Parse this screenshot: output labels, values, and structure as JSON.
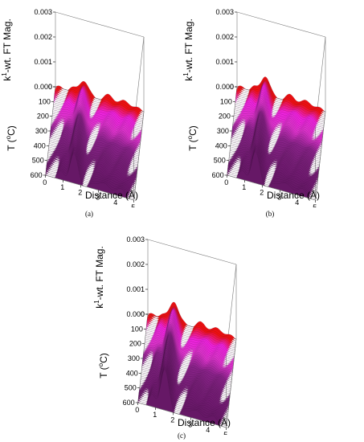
{
  "chart_data": [
    {
      "type": "surface3d-waterfall",
      "caption": "(a)",
      "zlabel_main": "-wt. FT Mag.",
      "zlabel_k": "k",
      "zlabel_sup": "1",
      "ylabel_main": "T (",
      "ylabel_sup": "o",
      "ylabel_end": "C)",
      "xlabel": "Distance (Å)",
      "x_ticks": [
        "0",
        "1",
        "2",
        "3",
        "4",
        "5"
      ],
      "y_ticks": [
        "0",
        "100",
        "200",
        "300",
        "400",
        "500",
        "600"
      ],
      "z_ticks": [
        "0.000",
        "0.001",
        "0.002",
        "0.003"
      ],
      "xlim": [
        0,
        5
      ],
      "ylim": [
        0,
        600
      ],
      "zlim": [
        0,
        0.003
      ],
      "peak_position_A": 1.6,
      "series": [
        {
          "temperature": 25,
          "peak_height": 0.00062,
          "color": "#ee1111"
        },
        {
          "temperature": 100,
          "peak_height": 0.00075,
          "color": "#ee22dd"
        },
        {
          "temperature": 200,
          "peak_height": 0.00088,
          "color": "#dd33cc"
        },
        {
          "temperature": 300,
          "peak_height": 0.001,
          "color": "#882288"
        },
        {
          "temperature": 400,
          "peak_height": 0.00108,
          "color": "#771f77"
        },
        {
          "temperature": 500,
          "peak_height": 0.00112,
          "color": "#6f1a6f"
        },
        {
          "temperature": 600,
          "peak_height": 0.00113,
          "color": "#661866"
        }
      ]
    },
    {
      "type": "surface3d-waterfall",
      "caption": "(b)",
      "zlabel_main": "-wt. FT Mag.",
      "zlabel_k": "k",
      "zlabel_sup": "1",
      "ylabel_main": "T (",
      "ylabel_sup": "o",
      "ylabel_end": "C)",
      "xlabel": "Distance (Å)",
      "x_ticks": [
        "0",
        "1",
        "2",
        "3",
        "4",
        "5"
      ],
      "y_ticks": [
        "0",
        "100",
        "200",
        "300",
        "400",
        "500",
        "600"
      ],
      "z_ticks": [
        "0.000",
        "0.001",
        "0.002",
        "0.003"
      ],
      "xlim": [
        0,
        5
      ],
      "ylim": [
        0,
        600
      ],
      "zlim": [
        0,
        0.003
      ],
      "peak_position_A": 1.6,
      "series": [
        {
          "temperature": 25,
          "peak_height": 0.0008,
          "color": "#ee1111"
        },
        {
          "temperature": 100,
          "peak_height": 0.00092,
          "color": "#ee22dd"
        },
        {
          "temperature": 200,
          "peak_height": 0.001,
          "color": "#dd33cc"
        },
        {
          "temperature": 300,
          "peak_height": 0.0011,
          "color": "#882288"
        },
        {
          "temperature": 400,
          "peak_height": 0.00115,
          "color": "#771f77"
        },
        {
          "temperature": 500,
          "peak_height": 0.00118,
          "color": "#6f1a6f"
        },
        {
          "temperature": 600,
          "peak_height": 0.0012,
          "color": "#661866"
        }
      ]
    },
    {
      "type": "surface3d-waterfall",
      "caption": "(c)",
      "zlabel_main": "-wt. FT Mag.",
      "zlabel_k": "k",
      "zlabel_sup": "1",
      "ylabel_main": "T (",
      "ylabel_sup": "o",
      "ylabel_end": "C)",
      "xlabel": "Distance (Å)",
      "x_ticks": [
        "0",
        "1",
        "2",
        "3",
        "4",
        "5"
      ],
      "y_ticks": [
        "0",
        "100",
        "200",
        "300",
        "400",
        "500",
        "600"
      ],
      "z_ticks": [
        "0.000",
        "0.001",
        "0.002",
        "0.003"
      ],
      "xlim": [
        0,
        5
      ],
      "ylim": [
        0,
        600
      ],
      "zlim": [
        0,
        0.003
      ],
      "peak_position_A": 1.5,
      "series": [
        {
          "temperature": 25,
          "peak_height": 0.00085,
          "color": "#ee1111"
        },
        {
          "temperature": 100,
          "peak_height": 0.00105,
          "color": "#ee22dd"
        },
        {
          "temperature": 200,
          "peak_height": 0.00125,
          "color": "#dd33cc"
        },
        {
          "temperature": 300,
          "peak_height": 0.0014,
          "color": "#882288"
        },
        {
          "temperature": 400,
          "peak_height": 0.0015,
          "color": "#771f77"
        },
        {
          "temperature": 500,
          "peak_height": 0.00155,
          "color": "#6f1a6f"
        },
        {
          "temperature": 600,
          "peak_height": 0.0016,
          "color": "#661866"
        }
      ]
    }
  ]
}
